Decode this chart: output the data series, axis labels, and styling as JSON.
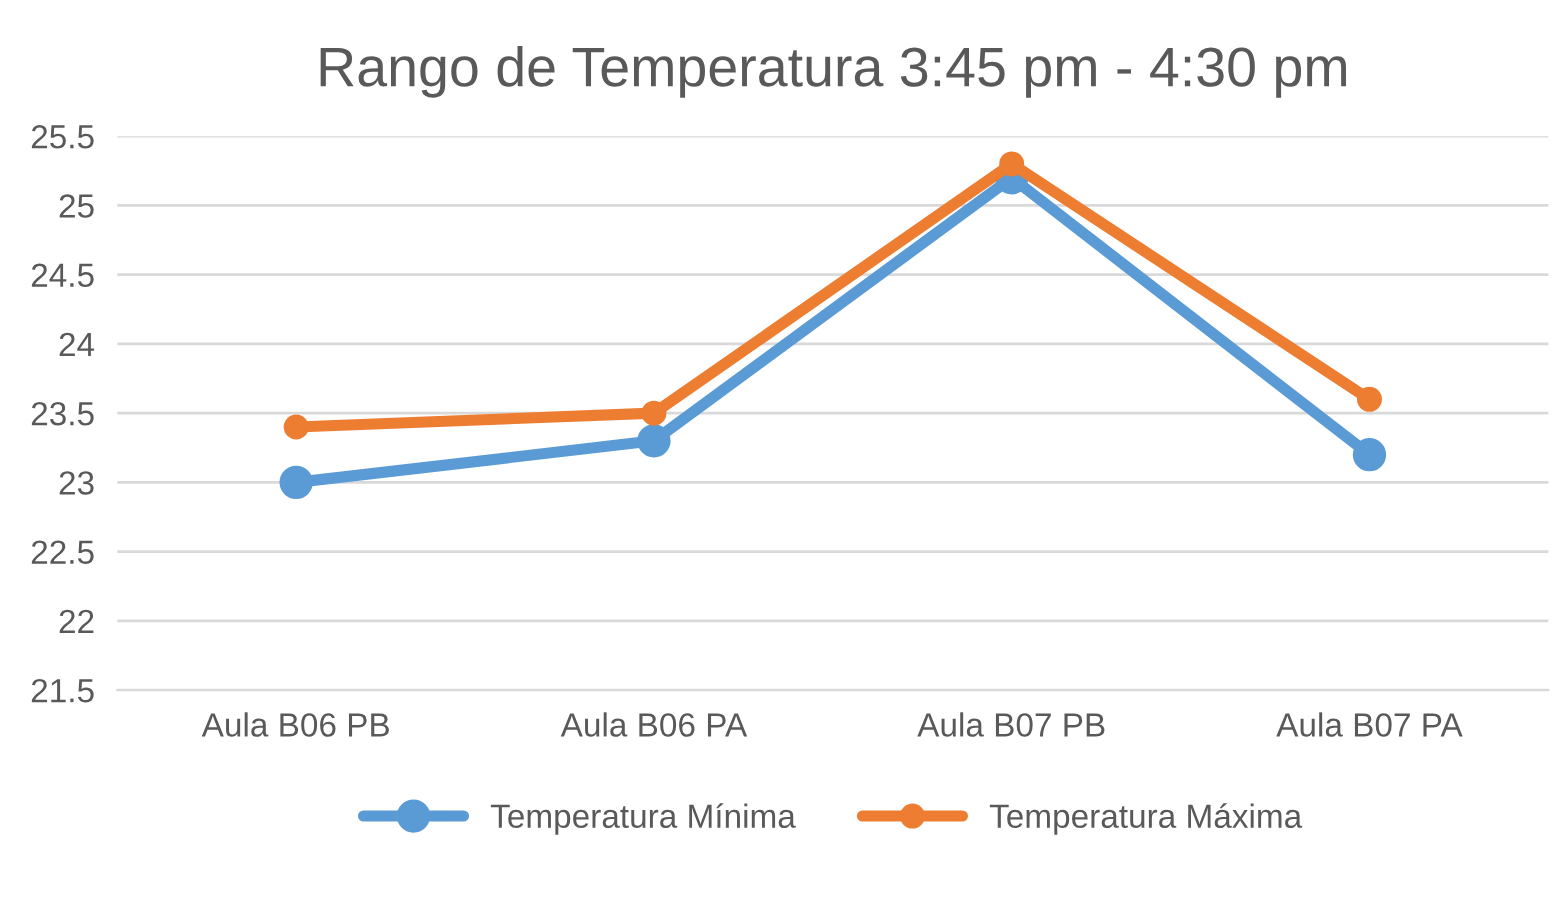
{
  "chart_data": {
    "type": "line",
    "title": "Rango de Temperatura 3:45 pm - 4:30 pm",
    "categories": [
      "Aula B06 PB",
      "Aula B06 PA",
      "Aula B07 PB",
      "Aula B07 PA"
    ],
    "series": [
      {
        "name": "Temperatura Mínima",
        "color": "#5b9bd5",
        "values": [
          23.0,
          23.3,
          25.2,
          23.2
        ]
      },
      {
        "name": "Temperatura Máxima",
        "color": "#ed7d31",
        "values": [
          23.4,
          23.5,
          25.3,
          23.6
        ]
      }
    ],
    "ylim": [
      21.5,
      25.5
    ],
    "yticks": [
      21.5,
      22,
      22.5,
      23,
      23.5,
      24,
      24.5,
      25,
      25.5
    ],
    "grid": "y",
    "legend": "bottom",
    "marker": "circle",
    "line_style": "solid"
  }
}
